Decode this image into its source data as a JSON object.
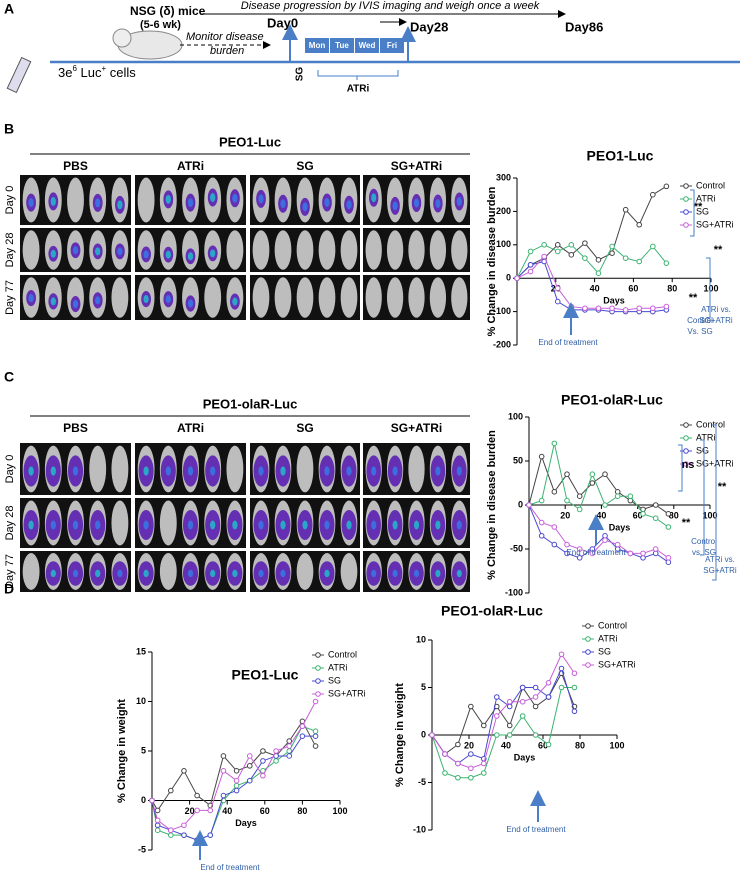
{
  "figure": {
    "panel_labels": [
      "A",
      "B",
      "C",
      "D"
    ],
    "schematic": {
      "mice": "NSG (δ) mice",
      "age": "(5-6 wk)",
      "progression": "Disease progression by IVIS imaging and weigh once a week",
      "day0": "Day0",
      "day28": "Day28",
      "day86": "Day86",
      "monitor": [
        "Monitor disease",
        "burden"
      ],
      "cells": [
        "3e",
        "6",
        " Luc",
        "+",
        " cells"
      ],
      "weekdays": [
        "Mon",
        "Tue",
        "Wed",
        "Fri"
      ],
      "sg": "SG",
      "atri": "ATRi"
    },
    "imaging": [
      {
        "title": "PEO1-Luc",
        "groups": [
          "PBS",
          "ATRi",
          "SG",
          "SG+ATRi"
        ],
        "rows": [
          "Day 0",
          "Day 28",
          "Day 77"
        ]
      },
      {
        "title": "PEO1-olaR-Luc",
        "groups": [
          "PBS",
          "ATRi",
          "SG",
          "SG+ATRi"
        ],
        "rows": [
          "Day 0",
          "Day 28",
          "Day 77"
        ]
      }
    ]
  },
  "chart_data": [
    {
      "type": "line",
      "title": "PEO1-Luc",
      "x_label": "Days",
      "y_label": "% Change in disease burden",
      "x": [
        0,
        7,
        14,
        21,
        28,
        35,
        42,
        49,
        56,
        63,
        70,
        77
      ],
      "xlim": [
        0,
        100
      ],
      "xticks": [
        20,
        40,
        60,
        80,
        100
      ],
      "ylim": [
        -200,
        300
      ],
      "yticks": [
        -200,
        -100,
        0,
        100,
        200,
        300
      ],
      "series": [
        {
          "name": "Control",
          "color": "#444444",
          "values": [
            0,
            40,
            60,
            100,
            70,
            105,
            55,
            75,
            205,
            160,
            250,
            275
          ]
        },
        {
          "name": "ATRi",
          "color": "#3cb371",
          "values": [
            0,
            80,
            100,
            80,
            100,
            60,
            15,
            95,
            60,
            50,
            95,
            45
          ]
        },
        {
          "name": "SG",
          "color": "#4a4ad0",
          "values": [
            0,
            40,
            50,
            -70,
            -95,
            -95,
            -95,
            -100,
            -100,
            -100,
            -100,
            -95
          ]
        },
        {
          "name": "SG+ATRi",
          "color": "#c85fd8",
          "values": [
            0,
            20,
            65,
            -30,
            -85,
            -90,
            -90,
            -90,
            -95,
            -90,
            -90,
            -85
          ]
        }
      ],
      "annotations": [
        "**",
        "**",
        "**",
        "Control",
        "Vs. SG",
        "ATRi vs.",
        "SG+ATRi",
        "End of treatment"
      ]
    },
    {
      "type": "line",
      "title": "PEO1-olaR-Luc",
      "x_label": "Days",
      "y_label": "% Change in disease burden",
      "x": [
        0,
        7,
        14,
        21,
        28,
        35,
        42,
        49,
        56,
        63,
        70,
        77
      ],
      "xlim": [
        0,
        100
      ],
      "xticks": [
        20,
        40,
        60,
        80,
        100
      ],
      "ylim": [
        -100,
        100
      ],
      "yticks": [
        -100,
        -50,
        0,
        50,
        100
      ],
      "series": [
        {
          "name": "Control",
          "color": "#444444",
          "values": [
            0,
            55,
            15,
            35,
            10,
            25,
            35,
            15,
            5,
            -5,
            0,
            -10
          ]
        },
        {
          "name": "ATRi",
          "color": "#3cb371",
          "values": [
            0,
            5,
            70,
            5,
            -5,
            35,
            0,
            10,
            10,
            -10,
            -15,
            -25
          ]
        },
        {
          "name": "SG",
          "color": "#4a4ad0",
          "values": [
            0,
            -35,
            -45,
            -55,
            -60,
            -50,
            -35,
            -50,
            -55,
            -60,
            -55,
            -65
          ]
        },
        {
          "name": "SG+ATRi",
          "color": "#c85fd8",
          "values": [
            0,
            -20,
            -25,
            -45,
            -50,
            -55,
            -40,
            -45,
            -55,
            -55,
            -50,
            -60
          ]
        }
      ],
      "annotations": [
        "ns",
        "**",
        "**",
        "Control",
        "vs. SG",
        "ATRi vs.",
        "SG+ATRi",
        "End of treatment"
      ]
    },
    {
      "type": "line",
      "title": "PEO1-Luc",
      "x_label": "Days",
      "y_label": "% Change in weight",
      "x": [
        0,
        3,
        10,
        17,
        24,
        31,
        38,
        45,
        52,
        59,
        66,
        73,
        80,
        87
      ],
      "xlim": [
        0,
        100
      ],
      "xticks": [
        20,
        40,
        60,
        80,
        100
      ],
      "ylim": [
        -5,
        15
      ],
      "yticks": [
        -5,
        0,
        5,
        10,
        15
      ],
      "series": [
        {
          "name": "Control",
          "color": "#444444",
          "values": [
            0,
            -1,
            1,
            3,
            0.5,
            -0.5,
            4.5,
            3,
            3.5,
            5,
            4.5,
            6,
            8,
            5.5
          ]
        },
        {
          "name": "ATRi",
          "color": "#3cb371",
          "values": [
            0,
            -3,
            -3.5,
            -3.5,
            -4,
            -3.5,
            0,
            1.5,
            2,
            3,
            4,
            5,
            7.5,
            7
          ]
        },
        {
          "name": "SG",
          "color": "#4a4ad0",
          "values": [
            0,
            -2.5,
            -3,
            -3.5,
            -4,
            -3.5,
            0.5,
            1,
            2,
            4,
            4.5,
            4.5,
            6.5,
            6.5
          ]
        },
        {
          "name": "SG+ATRi",
          "color": "#c85fd8",
          "values": [
            0,
            -2,
            -3,
            -2.5,
            -1,
            -1,
            3,
            2,
            4.5,
            2.5,
            5,
            5.5,
            7.5,
            10
          ]
        }
      ],
      "annotations": [
        "End of treatment"
      ]
    },
    {
      "type": "line",
      "title": "PEO1-olaR-Luc",
      "x_label": "Days",
      "y_label": "% Change in weight",
      "x": [
        0,
        7,
        14,
        21,
        28,
        35,
        42,
        49,
        56,
        63,
        70,
        77
      ],
      "xlim": [
        0,
        100
      ],
      "xticks": [
        20,
        40,
        60,
        80,
        100
      ],
      "ylim": [
        -10,
        10
      ],
      "yticks": [
        -10,
        -5,
        0,
        5,
        10
      ],
      "series": [
        {
          "name": "Control",
          "color": "#444444",
          "values": [
            0,
            -2,
            -1,
            3,
            1,
            3,
            1,
            5,
            3,
            4,
            6.5,
            3
          ]
        },
        {
          "name": "ATRi",
          "color": "#3cb371",
          "values": [
            0,
            -4,
            -4.5,
            -4.5,
            -4,
            0,
            0,
            2,
            0,
            -1,
            5,
            5
          ]
        },
        {
          "name": "SG",
          "color": "#4a4ad0",
          "values": [
            0,
            -2,
            -3,
            -2,
            -2.5,
            4,
            3,
            5,
            5,
            4,
            7,
            2.5
          ]
        },
        {
          "name": "SG+ATRi",
          "color": "#c85fd8",
          "values": [
            0,
            -2,
            -3,
            -3.5,
            -3,
            2,
            3.5,
            3.5,
            4,
            5.5,
            8.5,
            6.5
          ]
        }
      ],
      "annotations": [
        "End of treatment"
      ]
    }
  ]
}
